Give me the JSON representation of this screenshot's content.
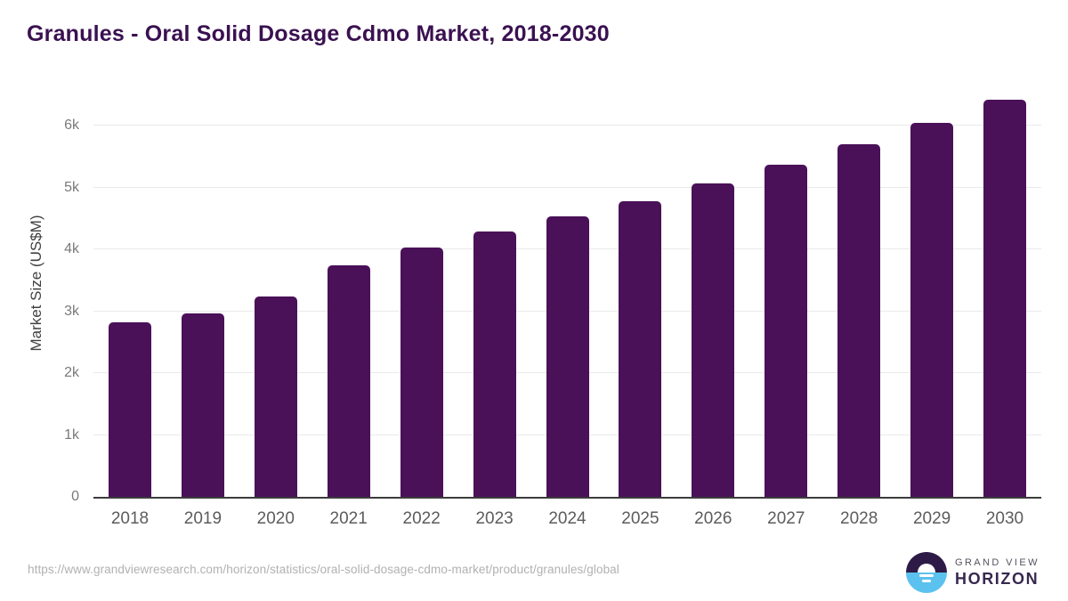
{
  "title": "Granules - Oral Solid Dosage Cdmo Market, 2018-2030",
  "chart_data": {
    "type": "bar",
    "title": "Granules - Oral Solid Dosage Cdmo Market, 2018-2030",
    "xlabel": "",
    "ylabel": "Market Size (US$M)",
    "categories": [
      "2018",
      "2019",
      "2020",
      "2021",
      "2022",
      "2023",
      "2024",
      "2025",
      "2026",
      "2027",
      "2028",
      "2029",
      "2030"
    ],
    "values": [
      2820,
      2970,
      3235,
      3745,
      4035,
      4290,
      4530,
      4780,
      5070,
      5370,
      5705,
      6050,
      6425
    ],
    "ylim": [
      0,
      6550
    ],
    "yticks": {
      "values": [
        0,
        1000,
        2000,
        3000,
        4000,
        5000,
        6000
      ],
      "labels": [
        "0",
        "1k",
        "2k",
        "3k",
        "4k",
        "5k",
        "6k"
      ]
    },
    "grid": true,
    "legend": "none",
    "bar_color": "#4A1158"
  },
  "footer": {
    "source_url": "https://www.grandviewresearch.com/horizon/statistics/oral-solid-dosage-cdmo-market/product/granules/global",
    "logo": {
      "line1": "GRAND VIEW",
      "line2": "HORIZON",
      "icon_top_color": "#2E1A47",
      "icon_bottom_color": "#5BC2EF"
    }
  },
  "colors": {
    "title": "#3A1151",
    "bar": "#4A1158",
    "axis_line": "#3c3c3c",
    "gridline": "#eaeaea",
    "y_tick_text": "#7a7a7a",
    "x_tick_text": "#5c5c5c",
    "url_text": "#b1b1b1"
  }
}
